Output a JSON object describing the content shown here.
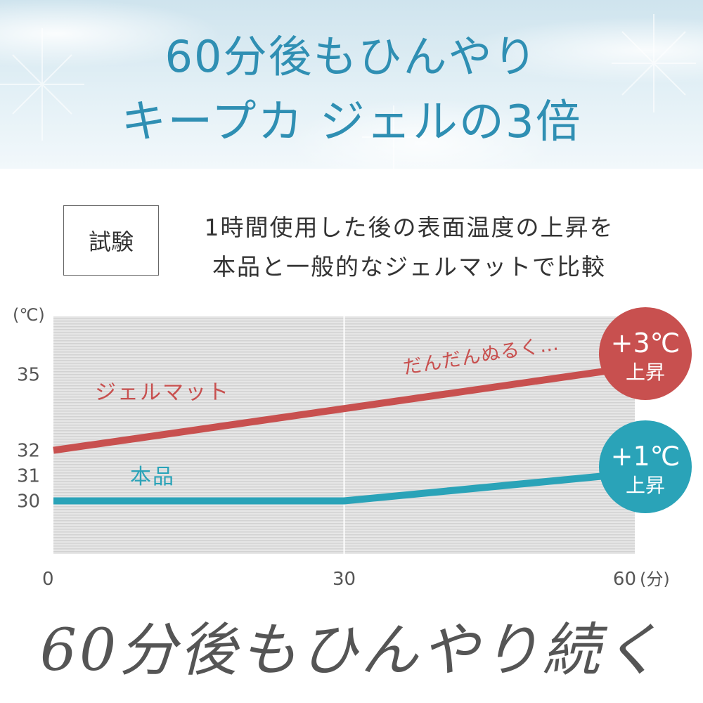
{
  "header": {
    "line1": "60分後もひんやり",
    "line2": "キープカ ジェルの3倍"
  },
  "test": {
    "label": "試験",
    "line1": "1時間使用した後の表面温度の上昇を",
    "line2": "本品と一般的なジェルマットで比較"
  },
  "chart_data": {
    "type": "line",
    "y_unit": "(℃)",
    "x_unit": "(分)",
    "x_ticks": [
      0,
      30,
      60
    ],
    "y_ticks": [
      30,
      31,
      32,
      35
    ],
    "xlim": [
      0,
      60
    ],
    "ylim": [
      27.9,
      37.3
    ],
    "grid": "vertical line at 30",
    "series": [
      {
        "name": "ジェルマット",
        "color": "#c8504f",
        "x": [
          0,
          60
        ],
        "y": [
          32,
          35.3
        ],
        "annotation": "だんだんぬるく…",
        "badge": {
          "value": "+3℃",
          "label": "上昇"
        }
      },
      {
        "name": "本品",
        "color": "#2aa3b8",
        "x": [
          0,
          30,
          60
        ],
        "y": [
          30,
          30,
          31.1
        ],
        "badge": {
          "value": "+1℃",
          "label": "上昇"
        }
      }
    ]
  },
  "footer": {
    "tagline": "60分後もひんやり続く"
  }
}
